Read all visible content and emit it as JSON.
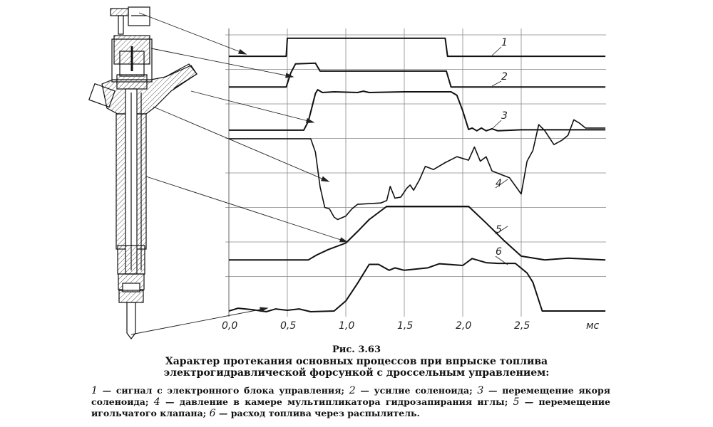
{
  "figure": {
    "number": "Рис. 3.63",
    "title_line1": "Характер протекания основных процессов при впрыске топлива",
    "title_line2": "электрогидравлической форсункой с дроссельным управлением:",
    "legend": [
      {
        "num": "1",
        "text": " — сигнал с электронного блока управления; "
      },
      {
        "num": "2",
        "text": " — усилие соленоида; "
      },
      {
        "num": "3",
        "text": " — перемещение якоря соленоида; "
      },
      {
        "num": "4",
        "text": " — давление в камере мультипликатора гидрозапирания иглы; "
      },
      {
        "num": "5",
        "text": " — перемещение игольчатого клапана; "
      },
      {
        "num": "6",
        "text": " — расход топлива через распылитель."
      }
    ]
  },
  "chart_data": {
    "type": "line",
    "x_unit_label": "мс",
    "x_ticks": [
      "0,0",
      "0,5",
      "1,0",
      "1,5",
      "2,0",
      "2,5"
    ],
    "x_tick_values": [
      0,
      0.5,
      1.0,
      1.5,
      2.0,
      2.5
    ],
    "xlim": [
      0,
      3.22
    ],
    "ylim_divisions": [
      0,
      8
    ],
    "grid": true,
    "line_color": "#111111",
    "series": [
      {
        "name": "1",
        "points": [
          [
            0,
            7.38
          ],
          [
            0.49,
            7.38
          ],
          [
            0.5,
            7.9
          ],
          [
            1.85,
            7.9
          ],
          [
            1.87,
            7.38
          ],
          [
            3.22,
            7.38
          ]
        ]
      },
      {
        "name": "2",
        "points": [
          [
            0,
            6.49
          ],
          [
            0.49,
            6.49
          ],
          [
            0.53,
            6.9
          ],
          [
            0.57,
            7.16
          ],
          [
            0.74,
            7.18
          ],
          [
            0.78,
            6.95
          ],
          [
            1.86,
            6.95
          ],
          [
            1.9,
            6.49
          ],
          [
            3.22,
            6.49
          ]
        ]
      },
      {
        "name": "3",
        "points": [
          [
            0,
            5.24
          ],
          [
            0.64,
            5.24
          ],
          [
            0.68,
            5.5
          ],
          [
            0.74,
            6.3
          ],
          [
            0.76,
            6.41
          ],
          [
            0.8,
            6.33
          ],
          [
            0.9,
            6.35
          ],
          [
            1.1,
            6.33
          ],
          [
            1.15,
            6.37
          ],
          [
            1.2,
            6.33
          ],
          [
            1.5,
            6.35
          ],
          [
            1.9,
            6.35
          ],
          [
            1.95,
            6.25
          ],
          [
            2.0,
            5.8
          ],
          [
            2.05,
            5.26
          ],
          [
            2.08,
            5.3
          ],
          [
            2.12,
            5.22
          ],
          [
            2.16,
            5.3
          ],
          [
            2.2,
            5.22
          ],
          [
            2.25,
            5.28
          ],
          [
            2.3,
            5.22
          ],
          [
            2.5,
            5.25
          ],
          [
            3.22,
            5.25
          ]
        ]
      },
      {
        "name": "4",
        "points": [
          [
            0,
            4.99
          ],
          [
            0.7,
            4.99
          ],
          [
            0.74,
            4.6
          ],
          [
            0.78,
            3.6
          ],
          [
            0.82,
            3.0
          ],
          [
            0.86,
            2.96
          ],
          [
            0.9,
            2.72
          ],
          [
            0.93,
            2.65
          ],
          [
            1.0,
            2.75
          ],
          [
            1.05,
            2.95
          ],
          [
            1.1,
            3.09
          ],
          [
            1.3,
            3.13
          ],
          [
            1.35,
            3.2
          ],
          [
            1.38,
            3.61
          ],
          [
            1.42,
            3.27
          ],
          [
            1.47,
            3.3
          ],
          [
            1.52,
            3.55
          ],
          [
            1.55,
            3.65
          ],
          [
            1.58,
            3.5
          ],
          [
            1.63,
            3.8
          ],
          [
            1.68,
            4.19
          ],
          [
            1.75,
            4.1
          ],
          [
            1.85,
            4.3
          ],
          [
            1.95,
            4.47
          ],
          [
            2.05,
            4.37
          ],
          [
            2.1,
            4.75
          ],
          [
            2.15,
            4.34
          ],
          [
            2.2,
            4.47
          ],
          [
            2.25,
            4.06
          ],
          [
            2.33,
            3.95
          ],
          [
            2.4,
            3.86
          ],
          [
            2.5,
            3.39
          ],
          [
            2.55,
            4.34
          ],
          [
            2.6,
            4.65
          ],
          [
            2.65,
            5.4
          ],
          [
            2.7,
            5.23
          ],
          [
            2.78,
            4.82
          ],
          [
            2.85,
            4.95
          ],
          [
            2.9,
            5.09
          ],
          [
            2.95,
            5.54
          ],
          [
            3.0,
            5.44
          ],
          [
            3.05,
            5.3
          ],
          [
            3.22,
            5.3
          ]
        ]
      },
      {
        "name": "5",
        "points": [
          [
            0,
            1.48
          ],
          [
            0.68,
            1.48
          ],
          [
            0.75,
            1.62
          ],
          [
            0.85,
            1.78
          ],
          [
            1.0,
            1.97
          ],
          [
            1.1,
            2.3
          ],
          [
            1.2,
            2.65
          ],
          [
            1.35,
            3.03
          ],
          [
            2.05,
            3.03
          ],
          [
            2.2,
            2.55
          ],
          [
            2.35,
            2.05
          ],
          [
            2.5,
            1.59
          ],
          [
            2.7,
            1.48
          ],
          [
            2.9,
            1.53
          ],
          [
            3.22,
            1.48
          ]
        ]
      },
      {
        "name": "6",
        "points": [
          [
            0,
            0
          ],
          [
            0.08,
            0.08
          ],
          [
            0.2,
            0.04
          ],
          [
            0.32,
            -0.02
          ],
          [
            0.4,
            0.06
          ],
          [
            0.5,
            0.02
          ],
          [
            0.6,
            0.06
          ],
          [
            0.7,
            -0.02
          ],
          [
            0.9,
            0
          ],
          [
            1.0,
            0.29
          ],
          [
            1.1,
            0.8
          ],
          [
            1.2,
            1.35
          ],
          [
            1.28,
            1.35
          ],
          [
            1.37,
            1.18
          ],
          [
            1.42,
            1.25
          ],
          [
            1.5,
            1.18
          ],
          [
            1.7,
            1.25
          ],
          [
            1.8,
            1.37
          ],
          [
            2.0,
            1.32
          ],
          [
            2.08,
            1.52
          ],
          [
            2.2,
            1.4
          ],
          [
            2.3,
            1.38
          ],
          [
            2.45,
            1.38
          ],
          [
            2.55,
            1.1
          ],
          [
            2.6,
            0.83
          ],
          [
            2.68,
            0
          ],
          [
            3.22,
            0
          ]
        ]
      }
    ]
  }
}
